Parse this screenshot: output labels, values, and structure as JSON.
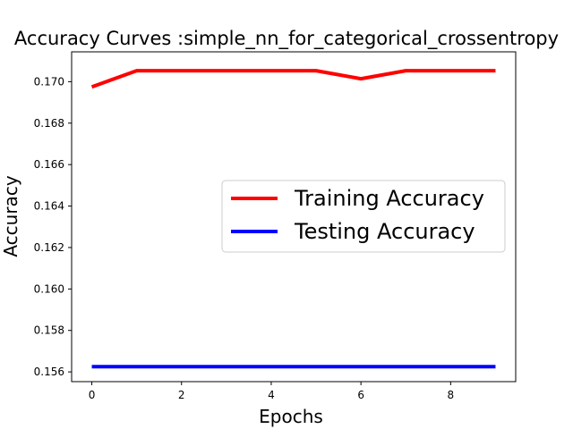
{
  "chart_data": {
    "type": "line",
    "title": "Accuracy Curves :simple_nn_for_categorical_crossentropy",
    "xlabel": "Epochs",
    "ylabel": "Accuracy",
    "x": [
      0,
      1,
      2,
      3,
      4,
      5,
      6,
      7,
      8,
      9
    ],
    "xlim": [
      -0.45,
      9.45
    ],
    "ylim": [
      0.15553,
      0.17144
    ],
    "xticks": [
      0,
      2,
      4,
      6,
      8
    ],
    "yticks": [
      0.156,
      0.158,
      0.16,
      0.162,
      0.164,
      0.166,
      0.168,
      0.17
    ],
    "grid": false,
    "legend_position": "center-right",
    "series": [
      {
        "name": "Training Accuracy",
        "color": "#ff0000",
        "values": [
          0.16975,
          0.17053,
          0.17053,
          0.17053,
          0.17053,
          0.17053,
          0.17014,
          0.17053,
          0.17053,
          0.17053
        ]
      },
      {
        "name": "Testing Accuracy",
        "color": "#0000ff",
        "values": [
          0.15625,
          0.15625,
          0.15625,
          0.15625,
          0.15625,
          0.15625,
          0.15625,
          0.15625,
          0.15625,
          0.15625
        ]
      }
    ]
  }
}
